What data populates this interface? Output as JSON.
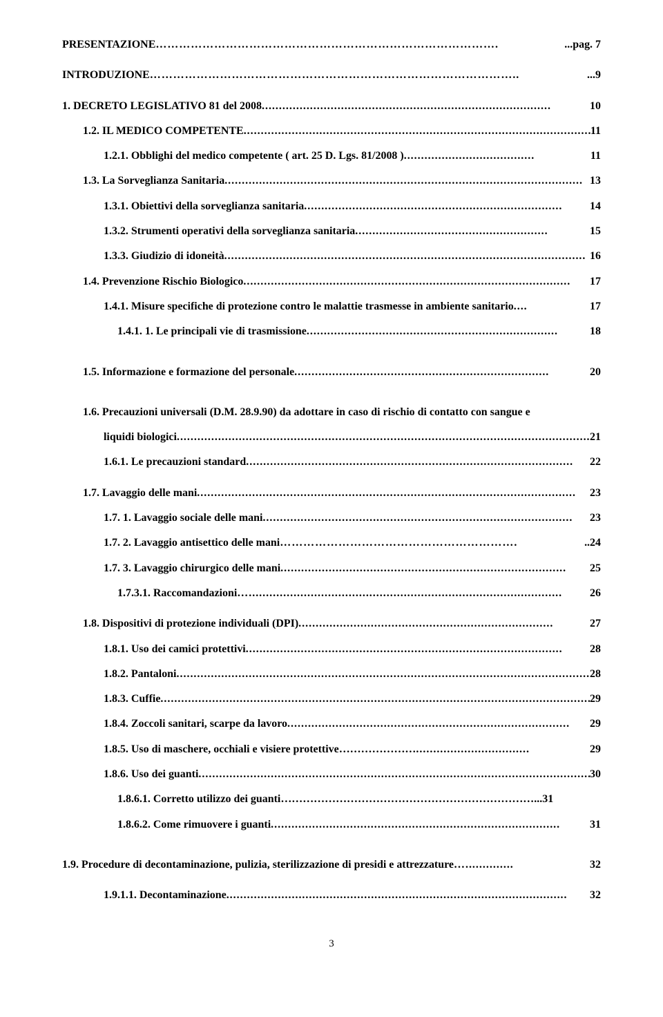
{
  "typography": {
    "font_family": "Times New Roman",
    "font_size_pt": 12,
    "line_height": 1.9,
    "font_weight": "bold",
    "text_color": "#000000",
    "background": "#ffffff"
  },
  "page_number": "3",
  "entries": [
    {
      "label": "PRESENTAZIONE",
      "leader": "…………………………………………………………………………….",
      "page": "...pag. 7",
      "indent": 0,
      "spaceAfter": "md"
    },
    {
      "label": "INTRODUZIONE ",
      "leader": "…………………………………………………………………………………..",
      "page": "...9",
      "indent": 0,
      "spaceAfter": "md"
    },
    {
      "label": "1.  DECRETO LEGISLATIVO 81 del  2008",
      "leader": "....................................................................................",
      "page": "10",
      "indent": 0,
      "spaceAfter": "sm"
    },
    {
      "label": "1.2.  IL MEDICO COMPETENTE",
      "leader": ".......................................................................................................",
      "page": "11",
      "indent": 1,
      "spaceAfter": "sm"
    },
    {
      "label": "1.2.1.  Obblighi del medico competente ( art. 25 D. Lgs. 81/2008 )",
      "leader": "......................................",
      "page": "11",
      "indent": 2,
      "spaceAfter": "sm"
    },
    {
      "label": "1.3.  La Sorveglianza Sanitaria",
      "leader": "........................................................................................................",
      "page": "13",
      "indent": 1,
      "spaceAfter": "sm"
    },
    {
      "label": "1.3.1. Obiettivi della sorveglianza sanitaria",
      "leader": "...........................................................................",
      "page": "14",
      "indent": 2,
      "spaceAfter": "sm"
    },
    {
      "label": "1.3.2. Strumenti operativi della sorveglianza sanitaria",
      "leader": "........................................................",
      "page": "15",
      "indent": 2,
      "spaceAfter": "sm"
    },
    {
      "label": "1.3.3. Giudizio di idoneità",
      "leader": ".........................................................................................................",
      "page": "16",
      "indent": 2,
      "spaceAfter": "sm"
    },
    {
      "label": "1.4.  Prevenzione Rischio Biologico",
      "leader": "...............................................................................................",
      "page": "17",
      "indent": 1,
      "spaceAfter": "sm"
    },
    {
      "label": "1.4.1. Misure specifiche di protezione contro le malattie trasmesse in ambiente sanitario",
      "leader": "....",
      "page": "17",
      "indent": 2,
      "spaceAfter": "sm"
    },
    {
      "label": "1.4.1. 1.  Le principali vie di trasmissione",
      "leader": ".........................................................................",
      "page": "18",
      "indent": 3,
      "spaceAfter": "lg"
    },
    {
      "label": "1.5.   Informazione e formazione del personale",
      "leader": "..........................................................................",
      "page": "20",
      "indent": 1,
      "spaceAfter": "lg"
    },
    {
      "label": "1.6.   Precauzioni universali (D.M. 28.9.90) da adottare in caso di rischio di contatto con sangue e",
      "leader": "",
      "page": "",
      "indent": 1,
      "spaceAfter": "sm"
    },
    {
      "label": "liquidi biologici",
      "leader": "............................................................................................................................",
      "page": "21",
      "indent": 2,
      "spaceAfter": "sm"
    },
    {
      "label": "1.6.1.  Le precauzioni standard",
      "leader": "...............................................................................................",
      "page": "22",
      "indent": 2,
      "spaceAfter": "md"
    },
    {
      "label": "1.7.   Lavaggio delle  mani",
      "leader": "..............................................................................................................",
      "page": "23",
      "indent": 1,
      "spaceAfter": "sm"
    },
    {
      "label": "1.7. 1. Lavaggio sociale delle mani",
      "leader": "..........................................................................................",
      "page": "23",
      "indent": 2,
      "spaceAfter": "sm"
    },
    {
      "label": "1.7. 2. Lavaggio antisettico delle mani",
      "leader": "…………………………………………………….",
      "page": "..24",
      "indent": 2,
      "spaceAfter": "sm"
    },
    {
      "label": "1.7. 3. Lavaggio chirurgico delle mani",
      "leader": "...................................................................................",
      "page": "25",
      "indent": 2,
      "spaceAfter": "sm"
    },
    {
      "label": " 1.7.3.1. Raccomandazioni ",
      "leader": "…...........................................................................................",
      "page": "26",
      "indent": 3,
      "spaceAfter": "md"
    },
    {
      "label": "1.8.  Dispositivi di protezione individuali (DPI)",
      "leader": "..........................................................................",
      "page": "27",
      "indent": 1,
      "spaceAfter": "sm"
    },
    {
      "label": "1.8.1.    Uso dei camici protettivi",
      "leader": "............................................................................................",
      "page": "28",
      "indent": 2,
      "spaceAfter": "sm"
    },
    {
      "label": "1.8.2. Pantaloni",
      "leader": "...........................................................................................................................",
      "page": "28",
      "indent": 2,
      "spaceAfter": "sm"
    },
    {
      "label": "1.8.3. Cuffie",
      "leader": ".................................................................................................................................",
      "page": "29",
      "indent": 2,
      "spaceAfter": "sm"
    },
    {
      "label": "1.8.4. Zoccoli sanitari, scarpe da lavoro",
      "leader": "..................................................................................",
      "page": "29",
      "indent": 2,
      "spaceAfter": "sm"
    },
    {
      "label": "1.8.5. Uso di maschere, occhiali  e visiere protettive…………………",
      "leader": ".................................",
      "page": "29",
      "indent": 2,
      "spaceAfter": "sm"
    },
    {
      "label": "1.8.6. Uso dei guanti",
      "leader": "...................................................................................................................",
      "page": "30",
      "indent": 2,
      "spaceAfter": "sm"
    },
    {
      "label": "1.8.6.1. Corretto utilizzo dei guanti……………………………………………………………",
      "leader": "",
      "page": "...31",
      "indent": 3,
      "spaceAfter": "sm"
    },
    {
      "label": "1.8.6.2. Come  rimuovere i guanti",
      "leader": "....................................................................................",
      "page": "31",
      "indent": 3,
      "spaceAfter": "lg"
    },
    {
      "label": "1.9.  Procedure di decontaminazione, pulizia,  sterilizzazione di presidi e attrezzature",
      "leader": "…..............",
      "page": "32",
      "indent": 0,
      "spaceAfter": "md"
    },
    {
      "label": "1.9.1.1. Decontaminazione",
      "leader": "...................................................................................................",
      "page": "32",
      "indent": 2,
      "spaceAfter": "sm"
    }
  ]
}
